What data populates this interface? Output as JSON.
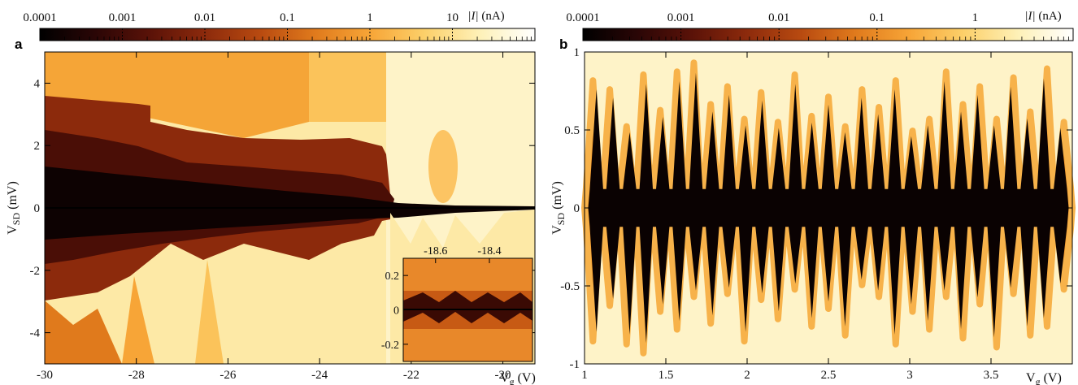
{
  "colors": {
    "colormap": [
      "#000000",
      "#2a0606",
      "#5a1208",
      "#8c2a0c",
      "#b84a10",
      "#e07a1c",
      "#f7a537",
      "#fcd06a",
      "#fef1b8",
      "#ffffff"
    ]
  },
  "chart_data": [
    {
      "panel": "a",
      "type": "heatmap",
      "colorbar": {
        "label_prefix": "|I|",
        "label_unit": "(nA)",
        "scale": "log",
        "ticks": [
          "0.0001",
          "0.001",
          "0.01",
          "0.1",
          "1",
          "10"
        ],
        "tick_values": [
          0.0001,
          0.001,
          0.01,
          0.1,
          1,
          10
        ],
        "range": [
          0.0001,
          100
        ]
      },
      "xlabel": "Vg (V)",
      "xlabel_main": "V",
      "xlabel_sub": "g",
      "xlabel_unit": "(V)",
      "ylabel_main": "V",
      "ylabel_sub": "SD",
      "ylabel_unit": "(mV)",
      "xlim": [
        -30,
        -19.3
      ],
      "ylim": [
        -5,
        5
      ],
      "xticks": [
        -30,
        -28,
        -26,
        -24,
        -22,
        -20
      ],
      "xtick_labels": [
        "-30",
        "-28",
        "-26",
        "-24",
        "-22",
        "-20"
      ],
      "yticks": [
        -4,
        -2,
        0,
        2,
        4
      ],
      "ytick_labels": [
        "-4",
        "-2",
        "0",
        "2",
        "4"
      ],
      "inset": {
        "xlim": [
          -18.72,
          -18.24
        ],
        "ylim": [
          -0.3,
          0.3
        ],
        "xticks": [
          -18.6,
          -18.4
        ],
        "xtick_labels": [
          "-18.6",
          "-18.4"
        ],
        "yticks": [
          0.2,
          0,
          -0.2
        ],
        "ytick_labels": [
          "0.2",
          "0",
          "-0.2"
        ]
      }
    },
    {
      "panel": "b",
      "type": "heatmap",
      "colorbar": {
        "label_prefix": "|I|",
        "label_unit": "(nA)",
        "scale": "log",
        "ticks": [
          "0.0001",
          "0.001",
          "0.01",
          "0.1",
          "1"
        ],
        "tick_values": [
          0.0001,
          0.001,
          0.01,
          0.1,
          1
        ],
        "range": [
          0.0001,
          10
        ]
      },
      "xlabel": "Vg (V)",
      "xlabel_main": "V",
      "xlabel_sub": "g",
      "xlabel_unit": "(V)",
      "ylabel_main": "V",
      "ylabel_sub": "SD",
      "ylabel_unit": "(mV)",
      "xlim": [
        1,
        4
      ],
      "ylim": [
        -1,
        1
      ],
      "xticks": [
        1,
        1.5,
        2,
        2.5,
        3,
        3.5
      ],
      "xtick_labels": [
        "1",
        "1.5",
        "2",
        "2.5",
        "3",
        "3.5"
      ],
      "yticks": [
        1,
        0.5,
        0,
        -0.5,
        -1
      ],
      "ytick_labels": [
        "1",
        "0.5",
        "0",
        "-0.5",
        "-1"
      ]
    }
  ]
}
